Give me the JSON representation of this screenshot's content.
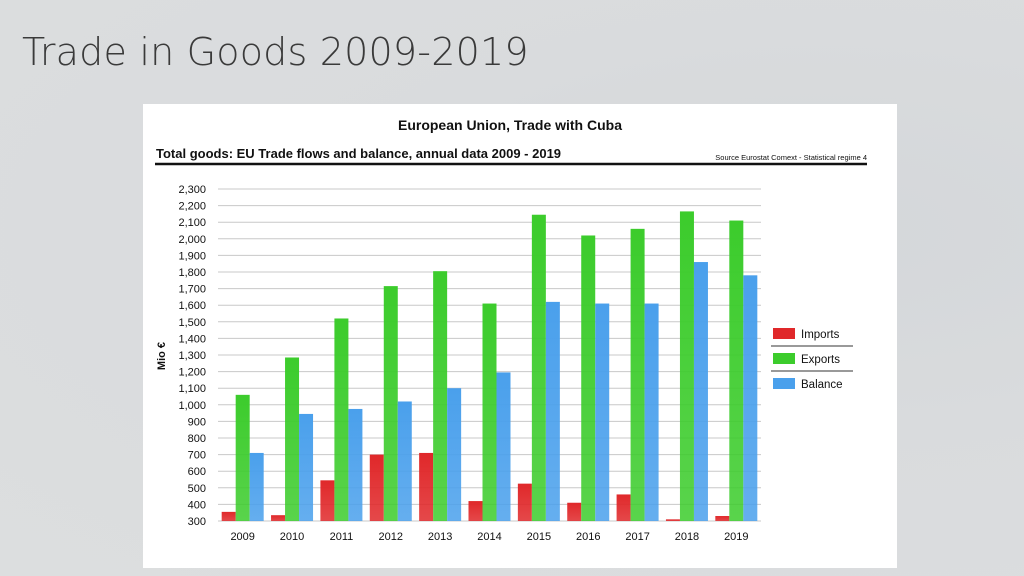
{
  "slide": {
    "title": "Trade in Goods 2009-2019"
  },
  "colors": {
    "imports": "#e0282a",
    "exports": "#3ccc2c",
    "balance": "#4aa0ec"
  },
  "chart_data": {
    "type": "bar",
    "title": "European Union, Trade with Cuba",
    "subtitle": "Total goods: EU Trade flows and balance, annual data 2009 - 2019",
    "source": "Source Eurostat Comext  - Statistical regime 4",
    "ylabel": "Mio €",
    "xlabel": "",
    "ylim": [
      300,
      2300
    ],
    "ytick_step": 100,
    "yticks": [
      "2,300",
      "2,200",
      "2,100",
      "2,000",
      "1,900",
      "1,800",
      "1,700",
      "1,600",
      "1,500",
      "1,400",
      "1,300",
      "1,200",
      "1,100",
      "1,000",
      "900",
      "800",
      "700",
      "600",
      "500",
      "400",
      "300"
    ],
    "categories": [
      "2009",
      "2010",
      "2011",
      "2012",
      "2013",
      "2014",
      "2015",
      "2016",
      "2017",
      "2018",
      "2019"
    ],
    "series": [
      {
        "name": "Imports",
        "values": [
          355,
          335,
          545,
          700,
          710,
          420,
          525,
          410,
          460,
          310,
          330
        ]
      },
      {
        "name": "Exports",
        "values": [
          1060,
          1285,
          1520,
          1715,
          1805,
          1610,
          2145,
          2020,
          2060,
          2165,
          2110
        ]
      },
      {
        "name": "Balance",
        "values": [
          710,
          945,
          975,
          1020,
          1100,
          1195,
          1620,
          1610,
          1610,
          1860,
          1780
        ]
      }
    ],
    "legend_position": "right"
  }
}
